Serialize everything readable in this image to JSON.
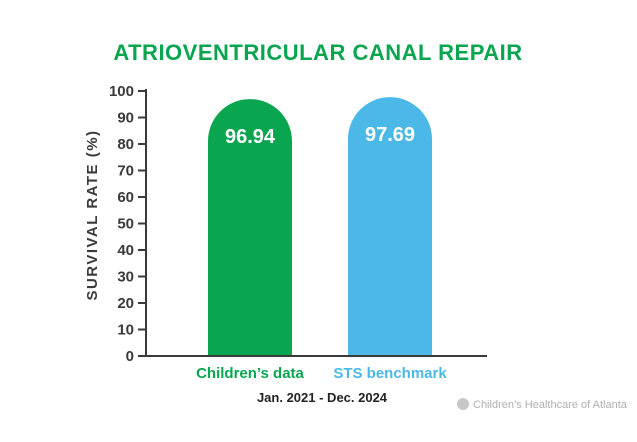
{
  "chart_data": {
    "type": "bar",
    "title": "ATRIOVENTRICULAR CANAL REPAIR",
    "ylabel": "SURVIVAL RATE (%)",
    "xlabel": "",
    "subtitle": "Jan. 2021 - Dec. 2024",
    "ylim": [
      0,
      100
    ],
    "yticks": [
      "0",
      "10",
      "20",
      "30",
      "40",
      "50",
      "60",
      "70",
      "80",
      "90",
      "100"
    ],
    "categories": [
      "Children’s data",
      "STS benchmark"
    ],
    "values": [
      96.94,
      97.69
    ],
    "value_labels": [
      "96.94",
      "97.69"
    ],
    "grid": false
  },
  "colors": {
    "title": "#0aa64f",
    "bars": [
      "#0aa64f",
      "#4bb8e8"
    ],
    "axis": "#3a3a3a"
  },
  "branding": {
    "text": "Children’s Healthcare of Atlanta",
    "icon": "cha-logo-icon"
  }
}
